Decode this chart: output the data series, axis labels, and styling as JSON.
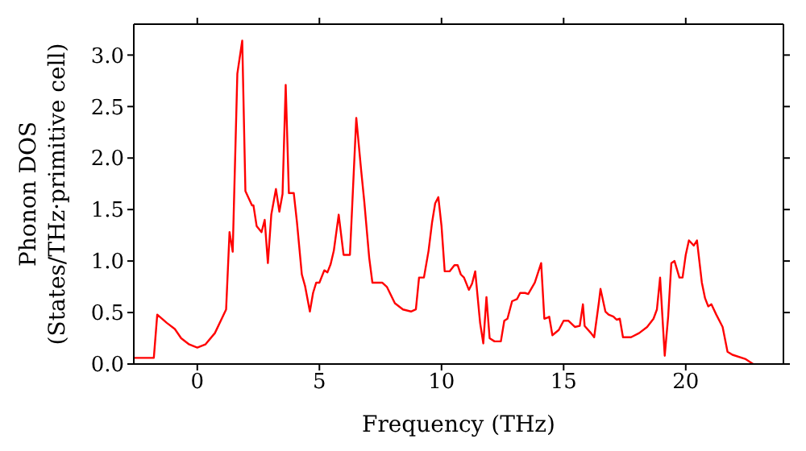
{
  "chart_data": {
    "type": "line",
    "xlabel": "Frequency (THz)",
    "ylabel": "Phonon DOS\n(States/THz·primitive cell)",
    "xlim": [
      -2.6,
      24
    ],
    "xticks": [
      0,
      5,
      10,
      15,
      20
    ],
    "ylim": [
      0,
      3.3
    ],
    "yticks": [
      {
        "value": 0,
        "label": "0.0"
      },
      {
        "value": 0.5,
        "label": "0.5"
      },
      {
        "value": 1,
        "label": "1.0"
      },
      {
        "value": 1.5,
        "label": "1.5"
      },
      {
        "value": 2,
        "label": "2.0"
      },
      {
        "value": 2.5,
        "label": "2.5"
      },
      {
        "value": 3,
        "label": "3.0"
      }
    ],
    "grid": false,
    "legend": false,
    "marker": "none",
    "line_style": "solid",
    "x": [
      -2.57,
      -1.78,
      -1.64,
      -1.25,
      -0.92,
      -0.66,
      -0.33,
      0,
      0.33,
      0.72,
      1.18,
      1.32,
      1.45,
      1.64,
      1.84,
      1.97,
      2.24,
      2.3,
      2.43,
      2.63,
      2.76,
      2.89,
      3.03,
      3.22,
      3.36,
      3.49,
      3.62,
      3.75,
      3.95,
      4.08,
      4.28,
      4.41,
      4.61,
      4.74,
      4.87,
      5.0,
      5.2,
      5.33,
      5.46,
      5.59,
      5.79,
      5.99,
      6.25,
      6.51,
      6.71,
      6.84,
      7.04,
      7.17,
      7.57,
      7.76,
      8.09,
      8.42,
      8.75,
      8.95,
      9.08,
      9.28,
      9.47,
      9.61,
      9.74,
      9.87,
      10.0,
      10.13,
      10.33,
      10.53,
      10.66,
      10.79,
      10.92,
      11.12,
      11.25,
      11.38,
      11.58,
      11.71,
      11.84,
      11.97,
      12.17,
      12.43,
      12.57,
      12.7,
      12.89,
      13.09,
      13.22,
      13.42,
      13.55,
      13.82,
      14.08,
      14.21,
      14.34,
      14.41,
      14.54,
      14.8,
      15.0,
      15.2,
      15.46,
      15.66,
      15.79,
      15.86,
      16.12,
      16.25,
      16.45,
      16.51,
      16.71,
      16.84,
      17.04,
      17.17,
      17.3,
      17.43,
      17.76,
      18.09,
      18.42,
      18.68,
      18.82,
      18.95,
      19.14,
      19.28,
      19.41,
      19.54,
      19.74,
      19.87,
      20.0,
      20.13,
      20.33,
      20.46,
      20.66,
      20.79,
      20.92,
      21.05,
      21.25,
      21.51,
      21.71,
      21.91,
      22.43,
      22.76
    ],
    "series": [
      {
        "color": "#ff0000",
        "values": [
          0.06,
          0.06,
          0.48,
          0.4,
          0.34,
          0.25,
          0.19,
          0.16,
          0.19,
          0.3,
          0.53,
          1.28,
          1.09,
          2.82,
          3.14,
          1.68,
          1.54,
          1.54,
          1.34,
          1.28,
          1.4,
          0.98,
          1.45,
          1.7,
          1.48,
          1.65,
          2.71,
          1.66,
          1.66,
          1.38,
          0.87,
          0.76,
          0.51,
          0.69,
          0.79,
          0.79,
          0.91,
          0.89,
          0.97,
          1.1,
          1.45,
          1.06,
          1.06,
          2.39,
          1.88,
          1.57,
          1.03,
          0.79,
          0.79,
          0.75,
          0.59,
          0.53,
          0.51,
          0.53,
          0.84,
          0.84,
          1.1,
          1.37,
          1.56,
          1.62,
          1.34,
          0.9,
          0.9,
          0.96,
          0.96,
          0.87,
          0.84,
          0.72,
          0.78,
          0.9,
          0.4,
          0.2,
          0.65,
          0.25,
          0.22,
          0.22,
          0.42,
          0.44,
          0.61,
          0.63,
          0.69,
          0.69,
          0.68,
          0.79,
          0.98,
          0.44,
          0.45,
          0.46,
          0.28,
          0.33,
          0.42,
          0.42,
          0.36,
          0.37,
          0.58,
          0.37,
          0.3,
          0.26,
          0.61,
          0.73,
          0.51,
          0.48,
          0.46,
          0.43,
          0.44,
          0.26,
          0.26,
          0.3,
          0.36,
          0.44,
          0.53,
          0.84,
          0.08,
          0.46,
          0.98,
          1.0,
          0.84,
          0.84,
          1.06,
          1.2,
          1.15,
          1.2,
          0.79,
          0.64,
          0.56,
          0.58,
          0.48,
          0.36,
          0.12,
          0.09,
          0.05,
          0
        ]
      }
    ]
  }
}
